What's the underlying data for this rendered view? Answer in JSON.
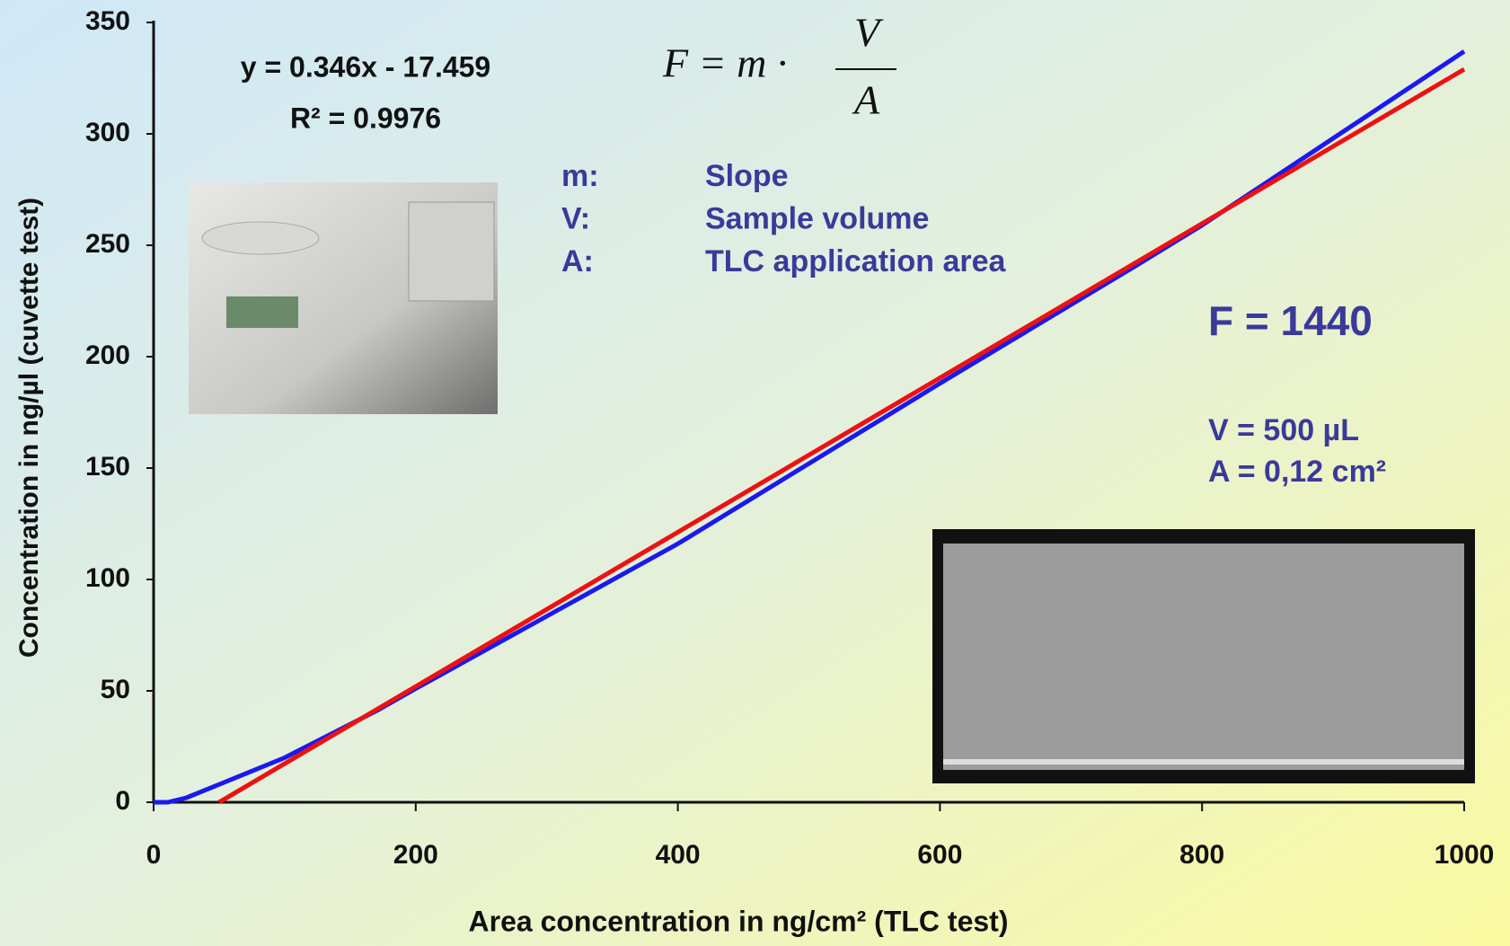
{
  "chart_data": {
    "type": "line",
    "x_label": "Area concentration in ng/cm² (TLC test)",
    "y_label": "Concentration in ng/µl (cuvette test)",
    "xlim": [
      0,
      1000
    ],
    "xticks": [
      0,
      200,
      400,
      600,
      800,
      1000
    ],
    "ylim": [
      0,
      350
    ],
    "yticks": [
      0,
      50,
      100,
      150,
      200,
      250,
      300,
      350
    ],
    "grid": false,
    "series": [
      {
        "color": "#1a1aee",
        "x": [
          0,
          11,
          25,
          50,
          100,
          170,
          200,
          400,
          600,
          750,
          800,
          1000
        ],
        "values": [
          0,
          0,
          2,
          8,
          20,
          41,
          51,
          116,
          188,
          241,
          259,
          337
        ]
      },
      {
        "color": "#ee1111",
        "x": [
          50,
          1000
        ],
        "values": [
          0,
          329
        ]
      }
    ],
    "annotations": {
      "equation": "y = 0.346x - 17.459",
      "r_squared": "R² = 0.9976",
      "formula_left": "F = m ·",
      "formula_numerator": "V",
      "formula_denominator": "A",
      "legend": [
        [
          "m:",
          "Slope"
        ],
        [
          "V:",
          "Sample volume"
        ],
        [
          "A:",
          "TLC application area"
        ]
      ],
      "result": "F = 1440",
      "volume": "V = 500 µL",
      "area": "A = 0,12 cm²"
    }
  }
}
